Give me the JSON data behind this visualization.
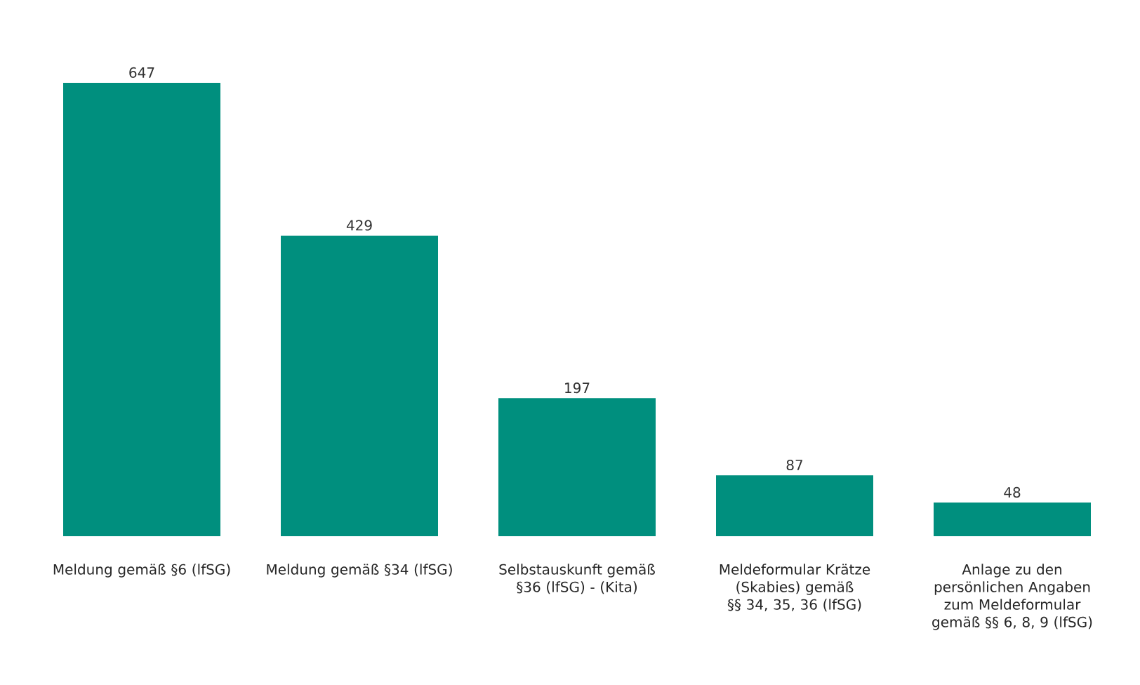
{
  "chart_data": {
    "type": "bar",
    "categories": [
      "Meldung gemäß §6 (lfSG)",
      "Meldung gemäß §34 (lfSG)",
      "Selbstauskunft gemäß §36 (lfSG) - (Kita)",
      "Meldeformular Krätze (Skabies) gemäß §§ 34, 35, 36 (lfSG)",
      "Anlage zu den persönlichen Angaben zum Meldeformular gemäß §§ 6, 8, 9 (lfSG)"
    ],
    "values": [
      647,
      429,
      197,
      87,
      48
    ],
    "color": "#008f7e",
    "data_labels": true
  }
}
